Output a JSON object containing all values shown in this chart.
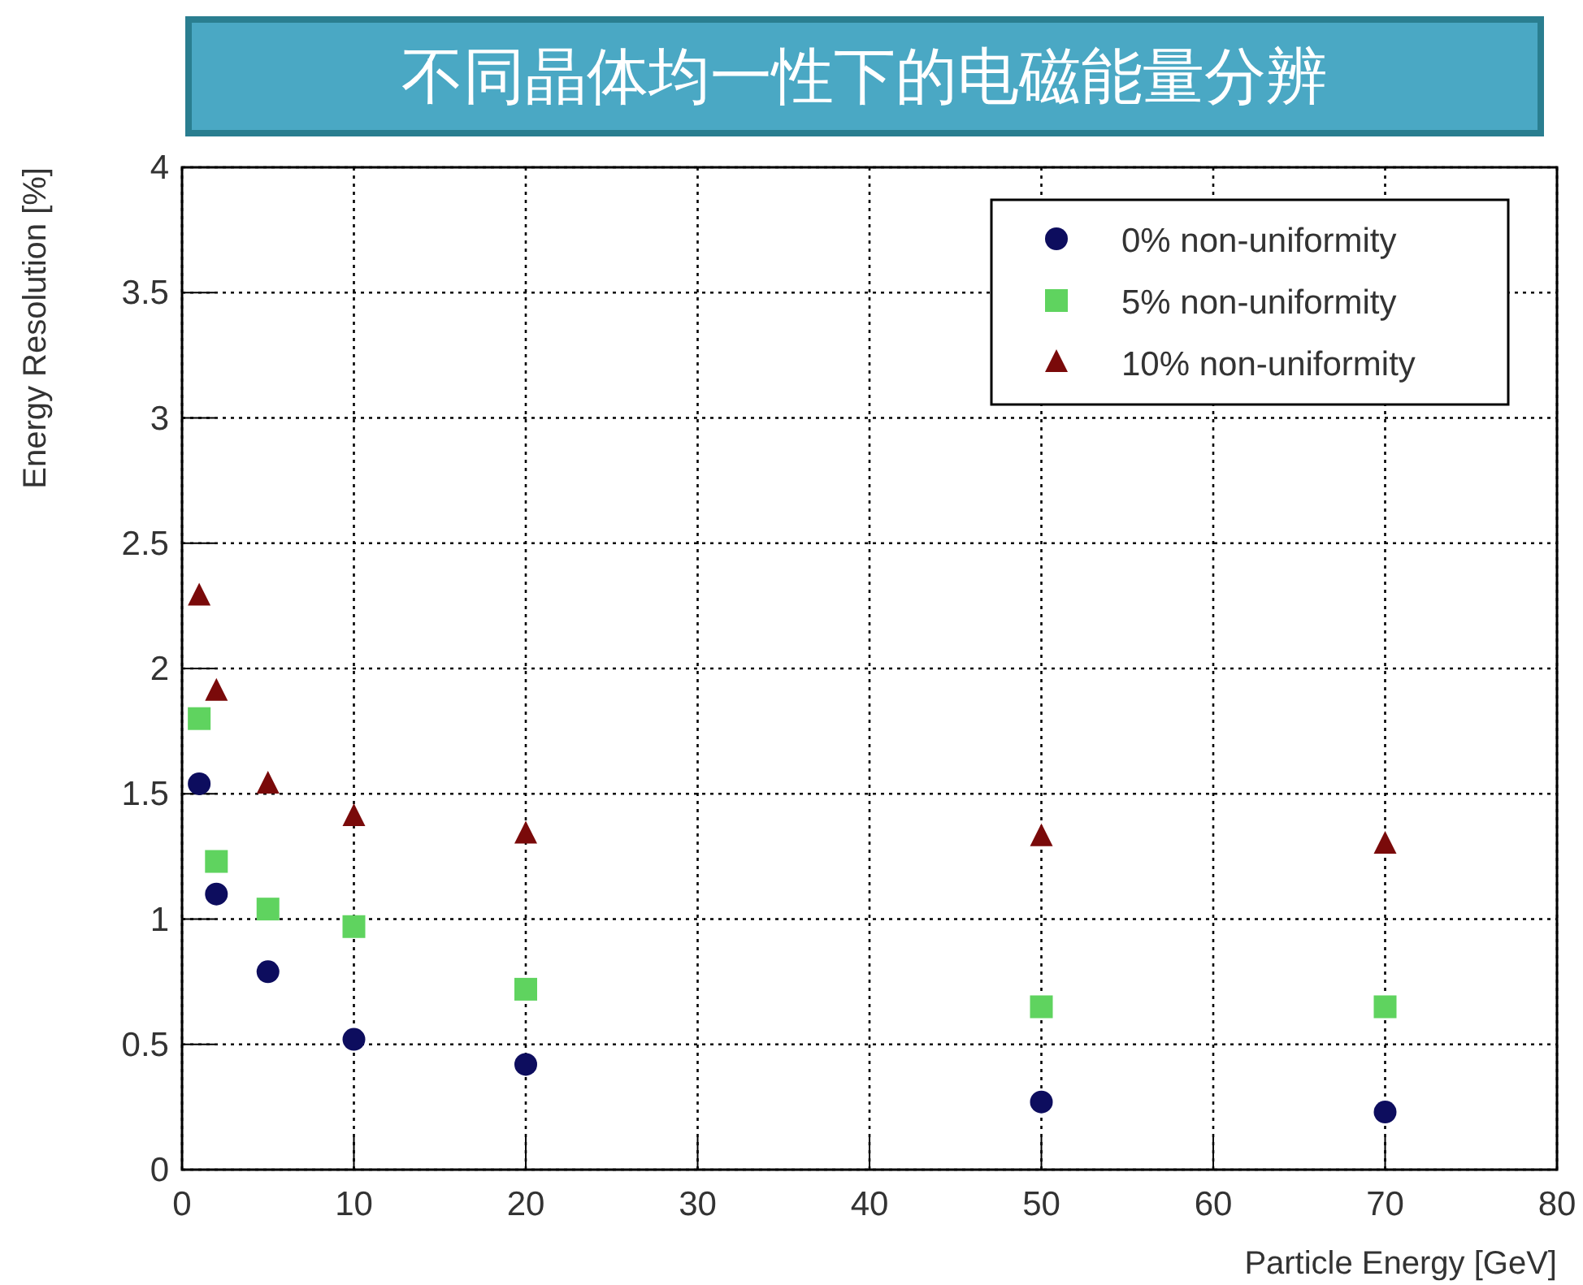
{
  "chart_data": {
    "type": "scatter",
    "title": "不同晶体均一性下的电磁能量分辨",
    "xlabel": "Particle Energy [GeV]",
    "ylabel": "Energy Resolution [%]",
    "xlim": [
      0,
      80
    ],
    "xticks": [
      0,
      10,
      20,
      30,
      40,
      50,
      60,
      70,
      80
    ],
    "ylim": [
      0,
      4
    ],
    "yticks": [
      0,
      0.5,
      1,
      1.5,
      2,
      2.5,
      3,
      3.5,
      4
    ],
    "grid": true,
    "legend": "top right",
    "series": [
      {
        "name": "0% non-uniformity",
        "color": "#0d0d5e",
        "marker": "circle",
        "x": [
          1,
          2,
          5,
          10,
          20,
          50,
          70
        ],
        "values": [
          1.54,
          1.1,
          0.79,
          0.52,
          0.42,
          0.27,
          0.23
        ]
      },
      {
        "name": "5% non-uniformity",
        "color": "#5fd35f",
        "marker": "square",
        "x": [
          1,
          2,
          5,
          10,
          20,
          50,
          70
        ],
        "values": [
          1.8,
          1.23,
          1.04,
          0.97,
          0.72,
          0.65,
          0.65
        ]
      },
      {
        "name": "10% non-uniformity",
        "color": "#7a0a0a",
        "marker": "triangle",
        "x": [
          1,
          2,
          5,
          10,
          20,
          50,
          70
        ],
        "values": [
          2.29,
          1.91,
          1.54,
          1.41,
          1.34,
          1.33,
          1.3
        ]
      }
    ]
  }
}
